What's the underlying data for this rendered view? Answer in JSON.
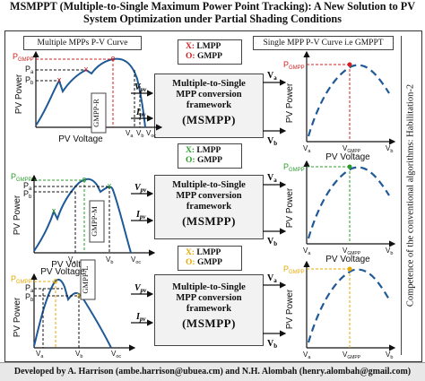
{
  "title_line1": "MSMPPT (Multiple-to-Single Maximum Power Point Tracking): A New Solution to PV",
  "title_line2": "System Optimization under Partial Shading Conditions",
  "left_header": "Multiple MPPs P-V Curve",
  "right_header": "Single MPP P-V Curve i.e GMPPT",
  "side_caption": "Competence of the conventional algorithms: Habilitation-2",
  "footer": "Developed by A. Harrison (ambe.harrison@ubuea.cm) and N.H. Alombah (henry.alombah@gmail.com)",
  "box": {
    "line1": "Multiple-to-Single",
    "line2": "MPP conversion",
    "line3": "framework",
    "line4": "(MSMPP)"
  },
  "legend": {
    "x_label": "X:",
    "x_value": "LMPP",
    "o_label": "O:",
    "o_value": "GMPP"
  },
  "legend_colors": [
    "#d42020",
    "#2a9d2a",
    "#e8a800"
  ],
  "input_labels": {
    "vpv": "V",
    "ipv": "I",
    "sub": "pv"
  },
  "output_labels": {
    "va": "V",
    "vb": "V",
    "sa": "a",
    "sb": "b"
  },
  "left_axes": {
    "y": "PV Power",
    "x": "PV Voltage"
  },
  "right_axes": {
    "y": "PV Power",
    "x": "PV Voltage"
  },
  "left_panels": [
    {
      "gmpp": "GMPP-R",
      "p_g": "P",
      "p_g_sub": "GMPP",
      "p_a": "P",
      "p_a_sub": "a",
      "p_b": "P",
      "p_b_sub": "b",
      "v_a": "V",
      "v_a_sub": "a",
      "v_b": "V",
      "v_b_sub": "b",
      "v_oc": "V",
      "v_oc_sub": "oc",
      "color": "#d42020"
    },
    {
      "gmpp": "GMPP-M",
      "p_g": "P",
      "p_g_sub": "GMPP",
      "p_a": "P",
      "p_a_sub": "a",
      "p_b": "P",
      "p_b_sub": "b",
      "v_a": "V",
      "v_a_sub": "a",
      "v_b": "V",
      "v_b_sub": "b",
      "v_oc": "V",
      "v_oc_sub": "oc",
      "color": "#2a9d2a"
    },
    {
      "gmpp": "GMPP-L",
      "p_g": "P",
      "p_g_sub": "GMPP",
      "p_a": "P",
      "p_a_sub": "a",
      "p_b": "P",
      "p_b_sub": "b",
      "v_a": "V",
      "v_a_sub": "a",
      "v_b": "V",
      "v_b_sub": "b",
      "v_oc": "V",
      "v_oc_sub": "oc",
      "color": "#e8a800"
    }
  ],
  "right_panels": [
    {
      "p_g": "P",
      "p_g_sub": "GMPP",
      "v_a": "V",
      "v_a_sub": "a",
      "v_g": "V",
      "v_g_sub": "GMPP",
      "v_b": "V",
      "v_b_sub": "b",
      "color": "#d42020"
    },
    {
      "p_g": "P",
      "p_g_sub": "GMPP",
      "v_a": "V",
      "v_a_sub": "a",
      "v_g": "V",
      "v_g_sub": "GMPP",
      "v_b": "V",
      "v_b_sub": "b",
      "color": "#2a9d2a"
    },
    {
      "p_g": "P",
      "p_g_sub": "GMPP",
      "v_a": "V",
      "v_a_sub": "a",
      "v_g": "V",
      "v_g_sub": "GMPP",
      "v_b": "V",
      "v_b_sub": "b",
      "color": "#e8a800"
    }
  ]
}
